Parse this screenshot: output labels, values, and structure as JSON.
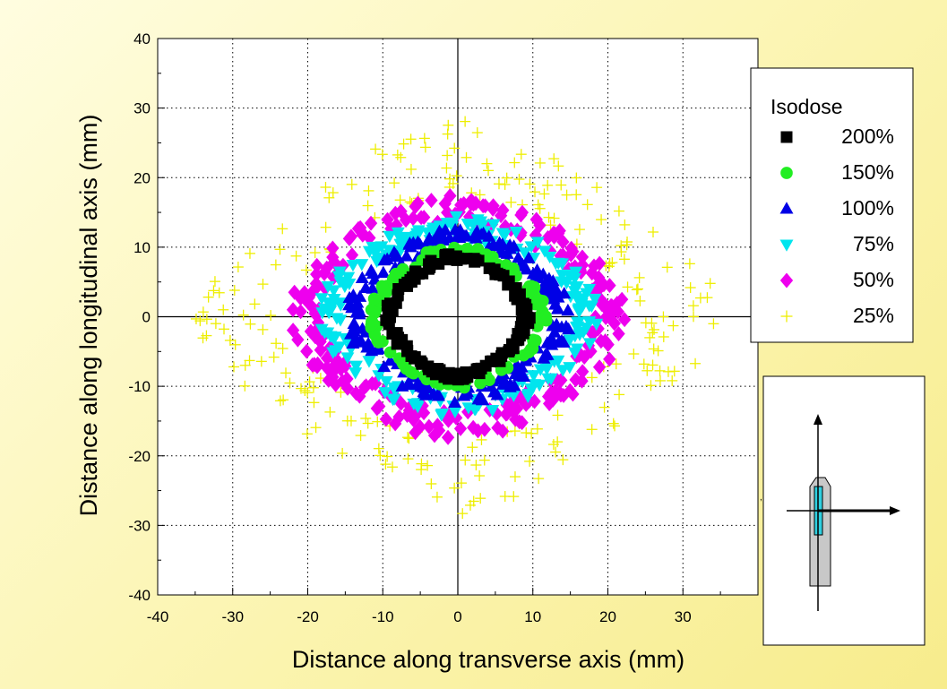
{
  "chart_data": {
    "type": "scatter",
    "title": "",
    "xlabel": "Distance along transverse axis (mm)",
    "ylabel": "Distance along longitudinal axis (mm)",
    "xlim": [
      -40,
      40
    ],
    "ylim": [
      -40,
      40
    ],
    "x_ticks": [
      -40,
      -30,
      -20,
      -10,
      0,
      10,
      20,
      30
    ],
    "y_ticks": [
      -40,
      -30,
      -20,
      -10,
      0,
      10,
      20,
      30,
      40
    ],
    "grid": "dotted",
    "legend_title": "Isodose",
    "legend_position": "top-right",
    "series": [
      {
        "name": "200%",
        "marker": "square",
        "color": "#000000",
        "shape": "ring",
        "rx": 8.5,
        "ry": 8.0,
        "width": 1.0,
        "count": 140,
        "seed": 11
      },
      {
        "name": "150%",
        "marker": "circle",
        "color": "#22ee22",
        "shape": "ring",
        "rx": 10.5,
        "ry": 9.0,
        "width": 1.2,
        "count": 130,
        "seed": 23
      },
      {
        "name": "100%",
        "marker": "triangle-up",
        "color": "#0000e6",
        "shape": "ring",
        "rx": 13.0,
        "ry": 10.5,
        "width": 2.4,
        "count": 190,
        "seed": 37
      },
      {
        "name": "75%",
        "marker": "triangle-down",
        "color": "#00e5ee",
        "shape": "ring",
        "rx": 16.0,
        "ry": 12.0,
        "width": 3.0,
        "count": 200,
        "seed": 41
      },
      {
        "name": "50%",
        "marker": "diamond",
        "color": "#ee00ee",
        "shape": "ring",
        "rx": 19.0,
        "ry": 14.5,
        "width": 4.0,
        "count": 260,
        "seed": 53
      },
      {
        "name": "25%",
        "marker": "plus",
        "color": "#eeee00",
        "shape": "ring",
        "rx": 25.5,
        "ry": 19.5,
        "width": 9.0,
        "count": 230,
        "seed": 67
      }
    ],
    "inset": "source geometry diagram with perpendicular axes arrows",
    "colors": {
      "axis": "#000000",
      "grid": "#000000",
      "background": "#ffffff"
    }
  }
}
